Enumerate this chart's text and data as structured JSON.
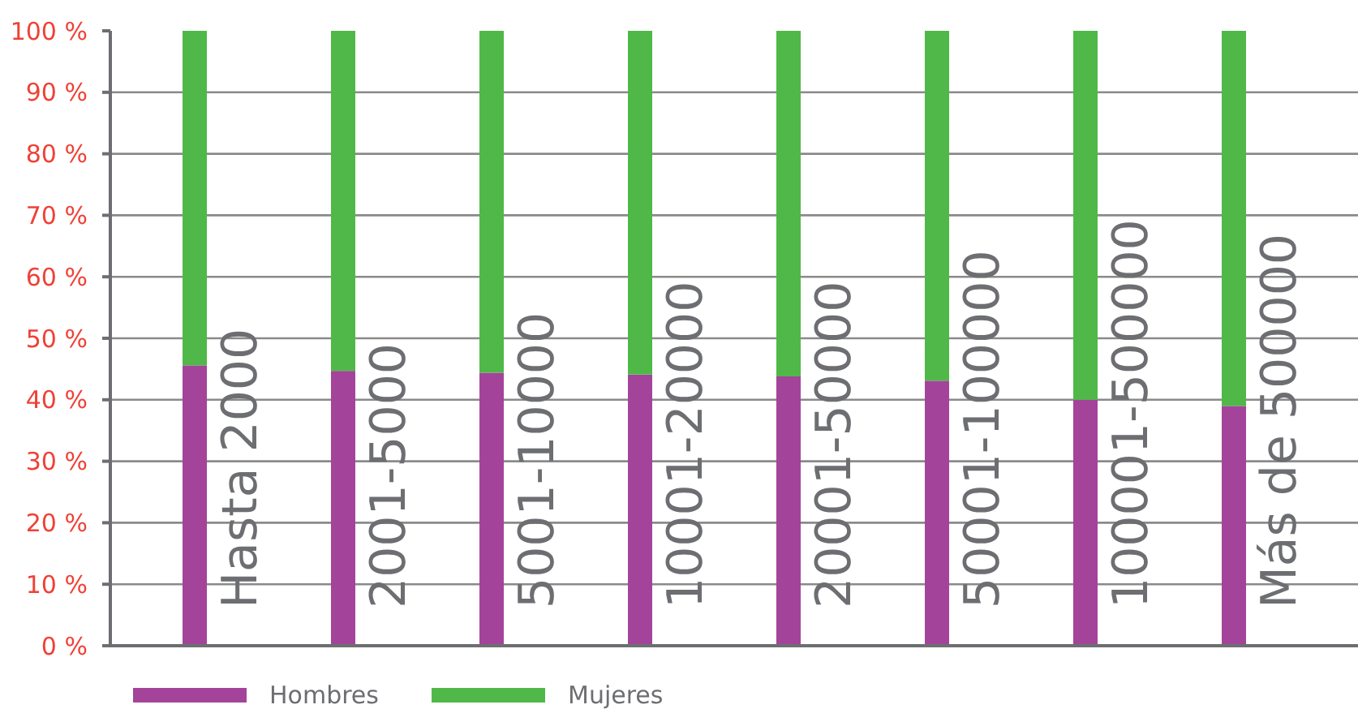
{
  "chart_data": {
    "type": "bar",
    "stacked": true,
    "categories": [
      "Hasta 2000",
      "2001-5000",
      "5001-10000",
      "10001-20000",
      "20001-50000",
      "50001-100000",
      "100001-500000",
      "Más de 500000"
    ],
    "series": [
      {
        "name": "Hombres",
        "color": "#a3449a",
        "values": [
          45.6,
          44.7,
          44.4,
          44.1,
          43.8,
          43.1,
          40.0,
          39.0
        ]
      },
      {
        "name": "Mujeres",
        "color": "#50b848",
        "values": [
          54.4,
          55.3,
          55.6,
          55.9,
          56.2,
          56.9,
          60.0,
          61.0
        ]
      }
    ],
    "ylim": [
      0,
      100
    ],
    "yticks": [
      {
        "value": 0,
        "label": "0 %"
      },
      {
        "value": 10,
        "label": "10 %"
      },
      {
        "value": 20,
        "label": "20 %"
      },
      {
        "value": 30,
        "label": "30 %"
      },
      {
        "value": 40,
        "label": "40 %"
      },
      {
        "value": 50,
        "label": "50 %"
      },
      {
        "value": 60,
        "label": "60 %"
      },
      {
        "value": 70,
        "label": "70 %"
      },
      {
        "value": 80,
        "label": "80 %"
      },
      {
        "value": 90,
        "label": "90 %"
      },
      {
        "value": 100,
        "label": "100 %"
      }
    ],
    "grid": "y",
    "legend": "bottom"
  }
}
